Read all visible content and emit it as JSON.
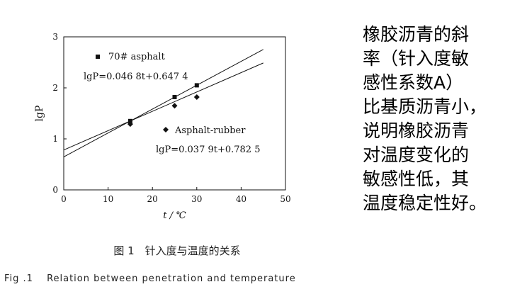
{
  "chart_data": {
    "type": "scatter",
    "xlabel": "t / ℃",
    "ylabel": "lgP",
    "xlim": [
      0,
      50
    ],
    "ylim": [
      0,
      3
    ],
    "x_ticks": [
      "0",
      "10",
      "20",
      "30",
      "40",
      "50"
    ],
    "y_ticks": [
      "0",
      "1",
      "2",
      "3"
    ],
    "grid": false,
    "series": [
      {
        "name": "70# asphalt",
        "marker": "square",
        "x": [
          15,
          25,
          30
        ],
        "y": [
          1.35,
          1.82,
          2.05
        ],
        "fit": {
          "slope": 0.0468,
          "intercept": 0.6474,
          "x_range": [
            0,
            45
          ]
        },
        "equation": "lgP=0.046 8t+0.647 4"
      },
      {
        "name": "Asphalt-rubber",
        "marker": "diamond",
        "x": [
          15,
          25,
          30
        ],
        "y": [
          1.29,
          1.65,
          1.82
        ],
        "fit": {
          "slope": 0.0379,
          "intercept": 0.7825,
          "x_range": [
            0,
            45
          ]
        },
        "equation": "lgP=0.037 9t+0.782 5"
      }
    ],
    "legend_placement": "inside"
  },
  "caption": {
    "cn": "图 1　针入度与温度的关系",
    "en": "Fig .1　 Relation between penetration and temperature"
  },
  "side_text": {
    "lines": [
      "橡胶沥青的斜",
      "率（针入度敏",
      "感性系数A）",
      "比基质沥青小，",
      "说明橡胶沥青",
      "对温度变化的",
      "敏感性低，其",
      "温度稳定性好。"
    ]
  },
  "colors": {
    "ink": "#111111"
  }
}
